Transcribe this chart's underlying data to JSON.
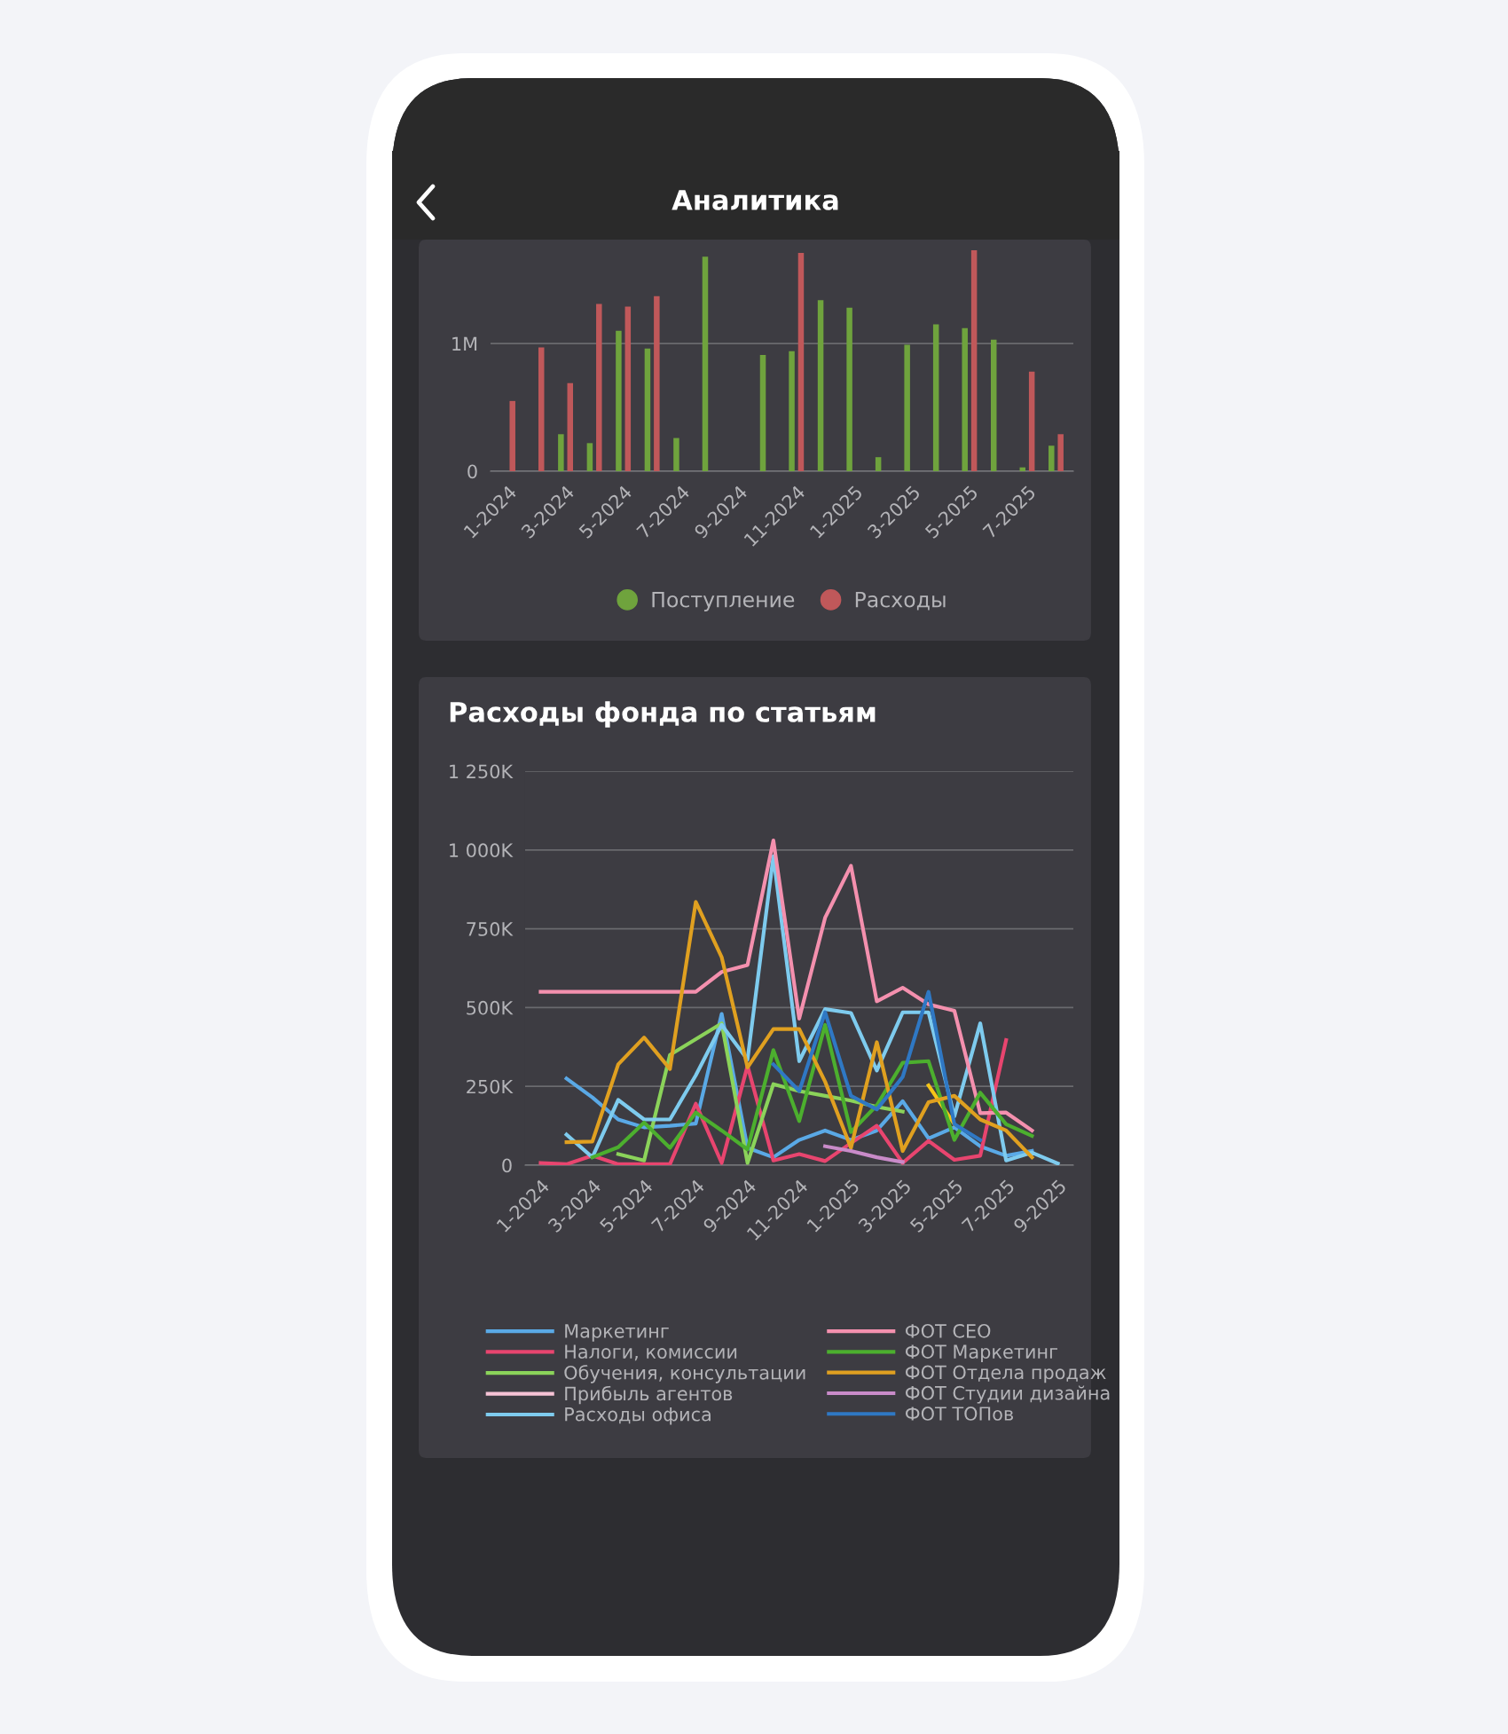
{
  "chart_data": [
    {
      "type": "bar",
      "annotations": [
        "Аналитика"
      ],
      "categories": [
        "1-2024",
        null,
        "3-2024",
        null,
        "5-2024",
        null,
        "7-2024",
        null,
        "9-2024",
        null,
        "11-2024",
        null,
        "1-2025",
        null,
        "3-2025",
        null,
        "5-2025",
        null,
        "7-2025",
        null
      ],
      "series": [
        {
          "name": "Поступление",
          "color": "#6fa33d",
          "values": [
            0,
            0,
            290000,
            220000,
            1100000,
            960000,
            260000,
            1680000,
            null,
            910000,
            940000,
            1340000,
            1280000,
            110000,
            990000,
            1150000,
            1120000,
            1030000,
            30000,
            200000
          ]
        },
        {
          "name": "Расходы",
          "color": "#c0585a",
          "values": [
            550000,
            970000,
            690000,
            1310000,
            1290000,
            1370000,
            null,
            null,
            null,
            null,
            1710000,
            null,
            null,
            null,
            null,
            null,
            1730000,
            null,
            780000,
            290000
          ]
        }
      ],
      "ylim": [
        0,
        1800000
      ],
      "yticks": [
        {
          "value": 0,
          "label": "0"
        },
        {
          "value": 1000000,
          "label": "1M"
        }
      ],
      "grid": "y",
      "legend": "bottom"
    },
    {
      "type": "line",
      "title": "Расходы фонда по статьям",
      "categories": [
        "1-2024",
        null,
        "3-2024",
        null,
        "5-2024",
        null,
        "7-2024",
        null,
        "9-2024",
        null,
        "11-2024",
        null,
        "1-2025",
        null,
        "3-2025",
        null,
        "5-2025",
        null,
        "7-2025",
        null,
        "9-2025"
      ],
      "series": [
        {
          "name": "Маркетинг",
          "color": "#5aa9e6",
          "values": [
            null,
            275000,
            215000,
            145000,
            120000,
            125000,
            132000,
            480000,
            55000,
            25000,
            80000,
            110000,
            80000,
            110000,
            203000,
            85000,
            120000,
            60000,
            30000,
            45000,
            null
          ]
        },
        {
          "name": "Налоги, комиссии",
          "color": "#e8456f",
          "values": [
            7000,
            3000,
            30000,
            3000,
            3000,
            3000,
            195000,
            7000,
            315000,
            15000,
            35000,
            13000,
            70000,
            125000,
            7000,
            77000,
            17000,
            30000,
            397000,
            null,
            null
          ]
        },
        {
          "name": "Обучения, консультации",
          "color": "#8bd35a",
          "values": [
            null,
            null,
            null,
            35000,
            15000,
            350000,
            400000,
            450000,
            7000,
            257000,
            235000,
            220000,
            205000,
            185000,
            170000,
            null,
            null,
            null,
            null,
            null,
            null
          ]
        },
        {
          "color": "#f5c518",
          "values": [
            null,
            null,
            null,
            null,
            null,
            null,
            null,
            null,
            null,
            null,
            null,
            null,
            null,
            null,
            null,
            253000,
            130000,
            null,
            null,
            null,
            null
          ]
        },
        {
          "name": "Прибыль агентов",
          "color": "#f6c3d6",
          "values": [
            null,
            null,
            null,
            null,
            null,
            null,
            null,
            null,
            null,
            null,
            null,
            null,
            null,
            null,
            null,
            null,
            null,
            null,
            null,
            null,
            null
          ]
        },
        {
          "name": "Расходы офиса",
          "color": "#7ecbee",
          "values": [
            null,
            97000,
            25000,
            207000,
            145000,
            145000,
            285000,
            445000,
            335000,
            980000,
            330000,
            495000,
            483000,
            300000,
            485000,
            485000,
            155000,
            450000,
            15000,
            40000,
            5000
          ]
        },
        {
          "name": "ФОТ CEO",
          "color": "#f490ae",
          "values": [
            550000,
            550000,
            550000,
            550000,
            550000,
            550000,
            550000,
            613000,
            635000,
            1030000,
            465000,
            785000,
            950000,
            520000,
            563000,
            510000,
            490000,
            165000,
            167000,
            110000,
            null
          ]
        },
        {
          "name": "ФОТ Маркетинг",
          "color": "#4caf2e",
          "values": [
            null,
            null,
            25000,
            57000,
            135000,
            55000,
            167000,
            110000,
            50000,
            365000,
            140000,
            445000,
            105000,
            190000,
            325000,
            330000,
            80000,
            230000,
            130000,
            93000,
            null
          ]
        },
        {
          "name": "ФОТ Отдела продаж",
          "color": "#e0a020",
          "values": [
            null,
            73000,
            75000,
            320000,
            405000,
            305000,
            835000,
            660000,
            310000,
            432000,
            432000,
            265000,
            55000,
            390000,
            45000,
            200000,
            220000,
            145000,
            110000,
            25000,
            null
          ]
        },
        {
          "name": "ФОТ Студии дизайна",
          "color": "#c98bc9",
          "values": [
            null,
            null,
            null,
            null,
            null,
            null,
            null,
            null,
            null,
            null,
            null,
            60000,
            45000,
            25000,
            10000,
            null,
            null,
            null,
            null,
            null,
            null
          ]
        },
        {
          "name": "ФОТ ТОПов",
          "color": "#2f78c4",
          "values": [
            null,
            null,
            null,
            null,
            null,
            null,
            null,
            null,
            null,
            320000,
            235000,
            485000,
            220000,
            177000,
            280000,
            550000,
            130000,
            80000,
            null,
            null,
            null
          ]
        }
      ],
      "ylim": [
        0,
        1250000
      ],
      "yticks": [
        {
          "value": 0,
          "label": "0"
        },
        {
          "value": 250000,
          "label": "250K"
        },
        {
          "value": 500000,
          "label": "500K"
        },
        {
          "value": 750000,
          "label": "750K"
        },
        {
          "value": 1000000,
          "label": "1 000K"
        },
        {
          "value": 1250000,
          "label": "1 250K"
        }
      ],
      "grid": "y",
      "legend": "bottom",
      "marker": "none",
      "line_style": "solid"
    }
  ]
}
